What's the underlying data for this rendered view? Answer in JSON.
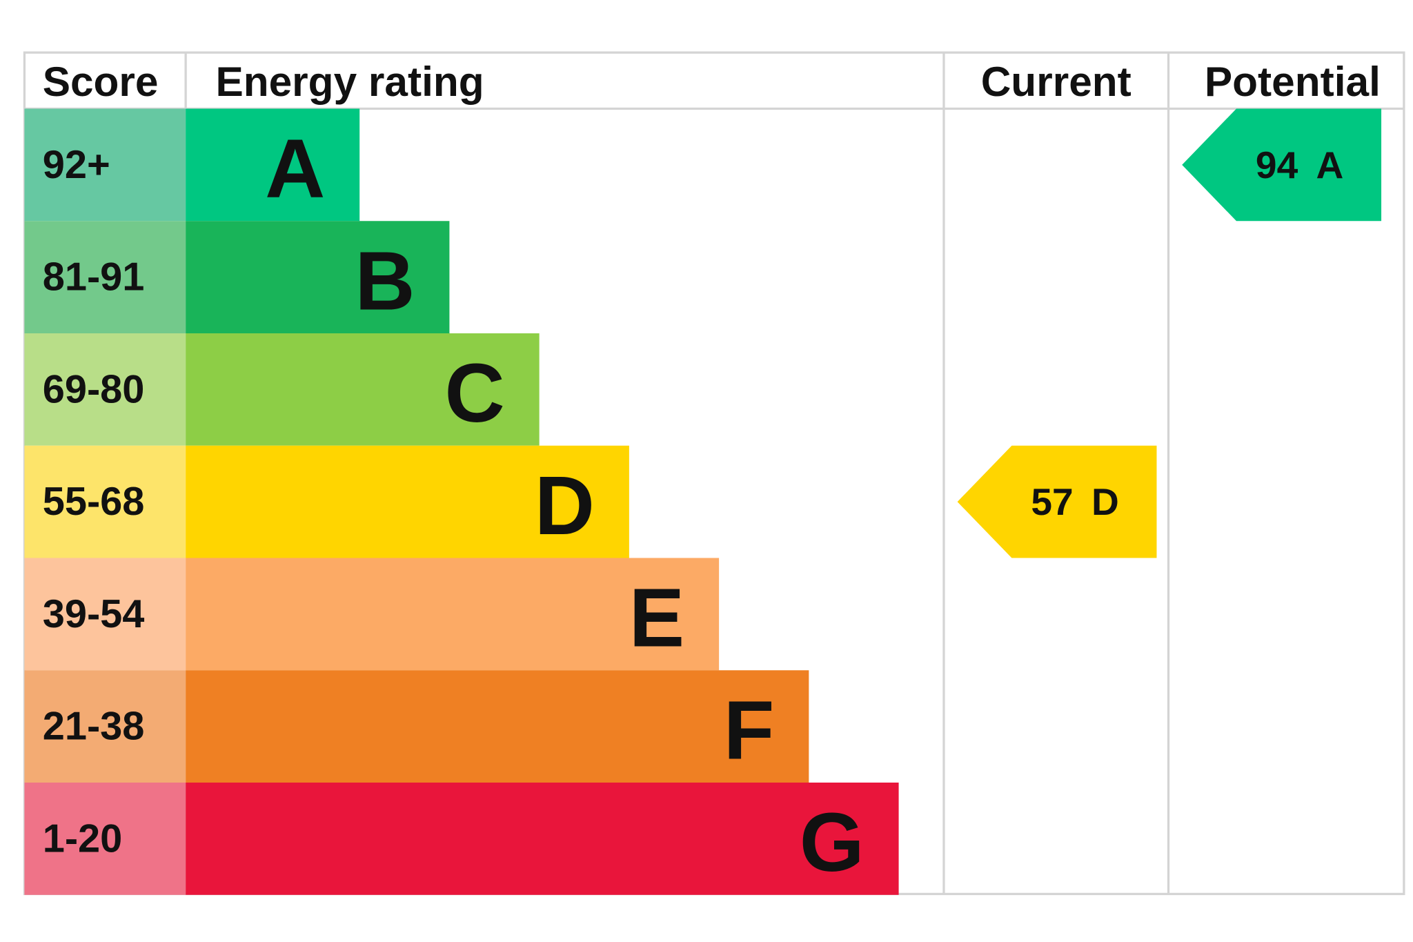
{
  "header": {
    "score": "Score",
    "energy_rating": "Energy rating",
    "current": "Current",
    "potential": "Potential"
  },
  "rows": [
    {
      "score": "92+",
      "band": "A",
      "color": "#00c781",
      "score_color": "#66c8a2"
    },
    {
      "score": "81-91",
      "band": "B",
      "color": "#19b459",
      "score_color": "#73c98b"
    },
    {
      "score": "69-80",
      "band": "C",
      "color": "#8dce46",
      "score_color": "#b8de88"
    },
    {
      "score": "55-68",
      "band": "D",
      "color": "#ffd500",
      "score_color": "#fde46a"
    },
    {
      "score": "39-54",
      "band": "E",
      "color": "#fcaa65",
      "score_color": "#fdc49c"
    },
    {
      "score": "21-38",
      "band": "F",
      "color": "#ef8023",
      "score_color": "#f3ab73"
    },
    {
      "score": "1-20",
      "band": "G",
      "color": "#e9153b",
      "score_color": "#ef7388"
    }
  ],
  "current": {
    "score": 57,
    "band": "D"
  },
  "potential": {
    "score": 94,
    "band": "A"
  }
}
